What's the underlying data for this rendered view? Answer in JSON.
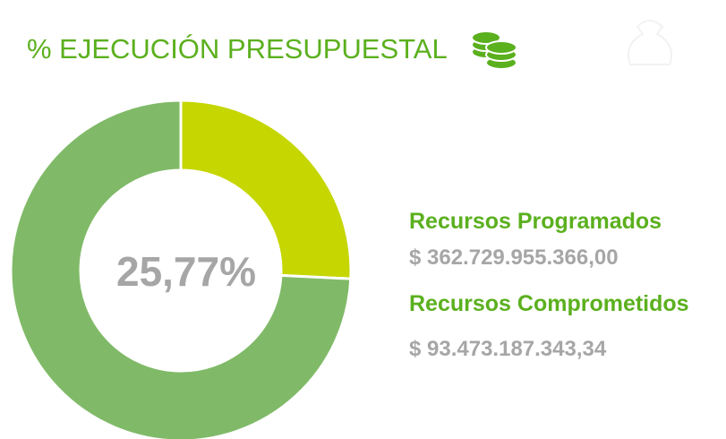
{
  "chart_data": {
    "type": "donut",
    "title": "% EJECUCIÓN PRESUPUESTAL",
    "values": [
      25.77,
      74.23
    ],
    "value_labels": [
      "25,77%",
      null
    ],
    "colors": [
      "#c5d600",
      "#80ba68"
    ],
    "summary": [
      {
        "label": "Recursos Programados",
        "amount": "$ 362.729.955.366,00"
      },
      {
        "label": "Recursos Comprometidos",
        "amount": "$ 93.473.187.343,34"
      }
    ]
  }
}
